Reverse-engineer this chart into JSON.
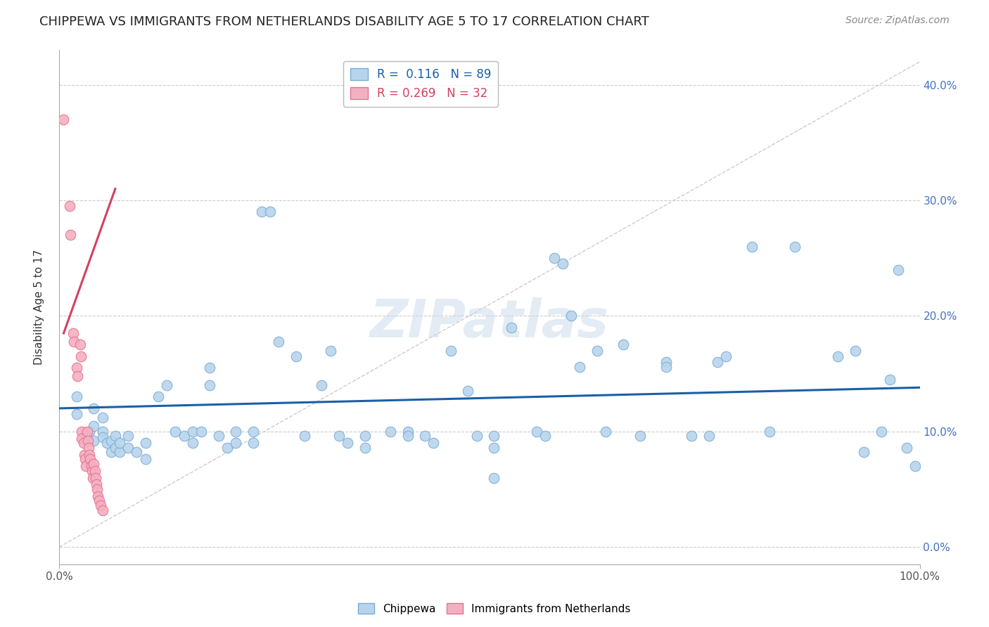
{
  "title": "CHIPPEWA VS IMMIGRANTS FROM NETHERLANDS DISABILITY AGE 5 TO 17 CORRELATION CHART",
  "source": "Source: ZipAtlas.com",
  "ylabel": "Disability Age 5 to 17",
  "xlim": [
    0.0,
    1.0
  ],
  "ylim": [
    -0.015,
    0.43
  ],
  "ytick_values": [
    0.0,
    0.1,
    0.2,
    0.3,
    0.4
  ],
  "watermark": "ZIPatlas",
  "chippewa_color": "#b8d4ed",
  "chippewa_edge": "#7aadd4",
  "netherlands_color": "#f4b0c0",
  "netherlands_edge": "#e87090",
  "trendline_blue_color": "#1a5fa8",
  "trendline_pink_color": "#d44060",
  "trendline_dashed_color": "#cccccc",
  "background_color": "#ffffff",
  "grid_color": "#cccccc",
  "chippewa_scatter": [
    [
      0.02,
      0.13
    ],
    [
      0.02,
      0.115
    ],
    [
      0.035,
      0.1
    ],
    [
      0.04,
      0.105
    ],
    [
      0.04,
      0.092
    ],
    [
      0.04,
      0.12
    ],
    [
      0.05,
      0.1
    ],
    [
      0.05,
      0.095
    ],
    [
      0.05,
      0.112
    ],
    [
      0.055,
      0.09
    ],
    [
      0.06,
      0.082
    ],
    [
      0.06,
      0.092
    ],
    [
      0.065,
      0.096
    ],
    [
      0.065,
      0.086
    ],
    [
      0.07,
      0.082
    ],
    [
      0.07,
      0.09
    ],
    [
      0.08,
      0.096
    ],
    [
      0.08,
      0.086
    ],
    [
      0.09,
      0.082
    ],
    [
      0.1,
      0.09
    ],
    [
      0.1,
      0.076
    ],
    [
      0.115,
      0.13
    ],
    [
      0.125,
      0.14
    ],
    [
      0.135,
      0.1
    ],
    [
      0.145,
      0.096
    ],
    [
      0.155,
      0.1
    ],
    [
      0.155,
      0.09
    ],
    [
      0.165,
      0.1
    ],
    [
      0.175,
      0.155
    ],
    [
      0.175,
      0.14
    ],
    [
      0.185,
      0.096
    ],
    [
      0.195,
      0.086
    ],
    [
      0.205,
      0.1
    ],
    [
      0.205,
      0.09
    ],
    [
      0.225,
      0.1
    ],
    [
      0.225,
      0.09
    ],
    [
      0.235,
      0.29
    ],
    [
      0.245,
      0.29
    ],
    [
      0.255,
      0.178
    ],
    [
      0.275,
      0.165
    ],
    [
      0.285,
      0.096
    ],
    [
      0.305,
      0.14
    ],
    [
      0.315,
      0.17
    ],
    [
      0.325,
      0.096
    ],
    [
      0.335,
      0.09
    ],
    [
      0.355,
      0.096
    ],
    [
      0.355,
      0.086
    ],
    [
      0.385,
      0.1
    ],
    [
      0.405,
      0.1
    ],
    [
      0.405,
      0.096
    ],
    [
      0.425,
      0.096
    ],
    [
      0.435,
      0.09
    ],
    [
      0.455,
      0.17
    ],
    [
      0.475,
      0.135
    ],
    [
      0.485,
      0.096
    ],
    [
      0.505,
      0.06
    ],
    [
      0.505,
      0.096
    ],
    [
      0.505,
      0.086
    ],
    [
      0.525,
      0.19
    ],
    [
      0.555,
      0.1
    ],
    [
      0.565,
      0.096
    ],
    [
      0.575,
      0.25
    ],
    [
      0.585,
      0.245
    ],
    [
      0.595,
      0.2
    ],
    [
      0.605,
      0.156
    ],
    [
      0.625,
      0.17
    ],
    [
      0.635,
      0.1
    ],
    [
      0.655,
      0.175
    ],
    [
      0.675,
      0.096
    ],
    [
      0.705,
      0.16
    ],
    [
      0.705,
      0.156
    ],
    [
      0.735,
      0.096
    ],
    [
      0.755,
      0.096
    ],
    [
      0.765,
      0.16
    ],
    [
      0.775,
      0.165
    ],
    [
      0.805,
      0.26
    ],
    [
      0.825,
      0.1
    ],
    [
      0.855,
      0.26
    ],
    [
      0.905,
      0.165
    ],
    [
      0.925,
      0.17
    ],
    [
      0.935,
      0.082
    ],
    [
      0.955,
      0.1
    ],
    [
      0.965,
      0.145
    ],
    [
      0.975,
      0.24
    ],
    [
      0.985,
      0.086
    ],
    [
      0.995,
      0.07
    ]
  ],
  "netherlands_scatter": [
    [
      0.005,
      0.37
    ],
    [
      0.012,
      0.295
    ],
    [
      0.013,
      0.27
    ],
    [
      0.016,
      0.185
    ],
    [
      0.017,
      0.178
    ],
    [
      0.02,
      0.155
    ],
    [
      0.021,
      0.148
    ],
    [
      0.024,
      0.175
    ],
    [
      0.025,
      0.165
    ],
    [
      0.026,
      0.1
    ],
    [
      0.026,
      0.094
    ],
    [
      0.028,
      0.09
    ],
    [
      0.029,
      0.08
    ],
    [
      0.03,
      0.076
    ],
    [
      0.031,
      0.07
    ],
    [
      0.032,
      0.1
    ],
    [
      0.033,
      0.092
    ],
    [
      0.034,
      0.086
    ],
    [
      0.035,
      0.08
    ],
    [
      0.036,
      0.076
    ],
    [
      0.037,
      0.07
    ],
    [
      0.038,
      0.066
    ],
    [
      0.039,
      0.06
    ],
    [
      0.04,
      0.072
    ],
    [
      0.041,
      0.066
    ],
    [
      0.042,
      0.06
    ],
    [
      0.043,
      0.054
    ],
    [
      0.044,
      0.05
    ],
    [
      0.045,
      0.044
    ],
    [
      0.046,
      0.04
    ],
    [
      0.048,
      0.036
    ],
    [
      0.05,
      0.032
    ]
  ],
  "blue_trend_x": [
    0.0,
    1.0
  ],
  "blue_trend_y": [
    0.12,
    0.138
  ],
  "pink_trend_x": [
    0.005,
    0.065
  ],
  "pink_trend_y": [
    0.185,
    0.31
  ]
}
